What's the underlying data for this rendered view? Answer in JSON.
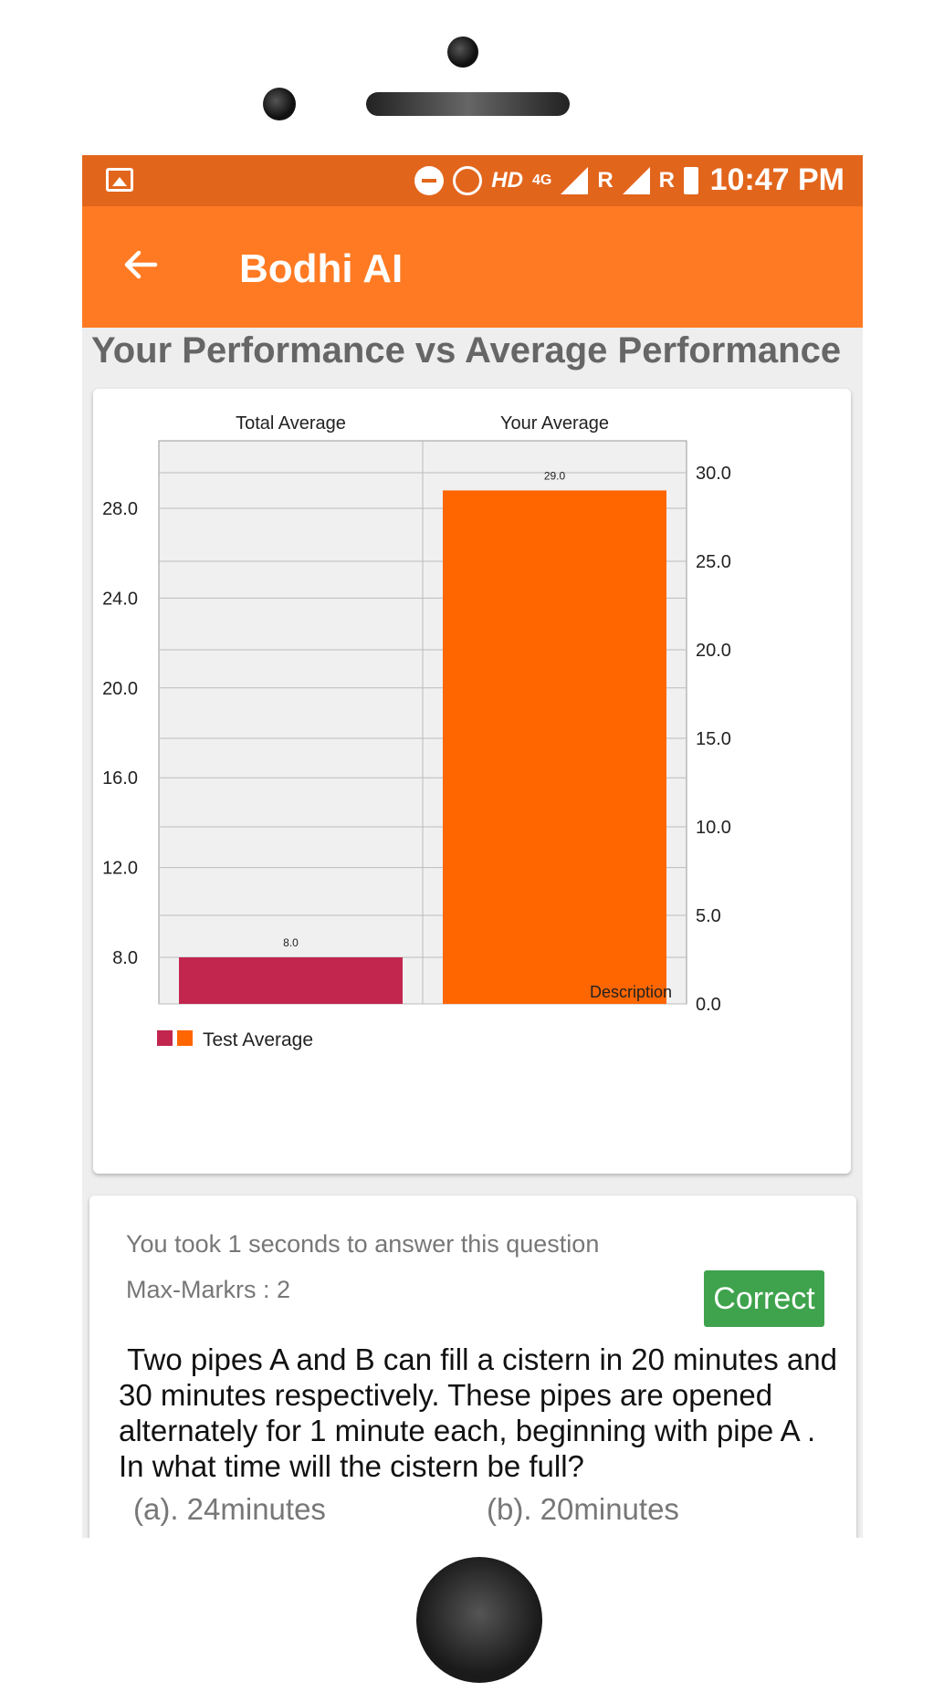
{
  "status_bar": {
    "time": "10:47 PM",
    "network_label": "HD",
    "network_type": "4G",
    "roaming_1": "R",
    "roaming_2": "R"
  },
  "app_bar": {
    "title": "Bodhi AI"
  },
  "section_title": "Your Performance vs Average Performance",
  "chart_data": {
    "type": "bar",
    "categories": [
      "Total Average",
      "Your Average"
    ],
    "series": [
      {
        "name": "Test Average",
        "values": [
          8.0,
          29.0
        ],
        "colors": [
          "#c2264f",
          "#ff6600"
        ]
      }
    ],
    "data_labels": [
      "8.0",
      "29.0"
    ],
    "legend": {
      "label": "Test Average",
      "placement": "bottom-left",
      "swatch_colors": [
        "#c2264f",
        "#ff6600"
      ]
    },
    "description": "Description",
    "left_axis": {
      "ticks": [
        "8.0",
        "12.0",
        "16.0",
        "20.0",
        "24.0",
        "28.0"
      ]
    },
    "right_axis": {
      "ticks": [
        "0.0",
        "5.0",
        "10.0",
        "15.0",
        "20.0",
        "25.0",
        "30.0"
      ]
    },
    "grid": true,
    "colors": {
      "total_average": "#c2264f",
      "your_average": "#ff6600",
      "plot_bg": "#f0f0f0"
    }
  },
  "question_card": {
    "time_text": "You took 1 seconds to answer this question",
    "max_marks": "Max-Markrs : 2",
    "status_label": "Correct",
    "question": " Two pipes A and B can fill a cistern in 20 minutes and 30 minutes respectively. These pipes are opened alternately for 1 minute each, beginning with pipe A . In what time will the cistern be full?",
    "options": [
      "(a). 24minutes",
      "(b). 20minutes"
    ]
  },
  "colors": {
    "accent": "#ff7a22",
    "status_bar": "#e2651c",
    "correct": "#3fa34d"
  }
}
